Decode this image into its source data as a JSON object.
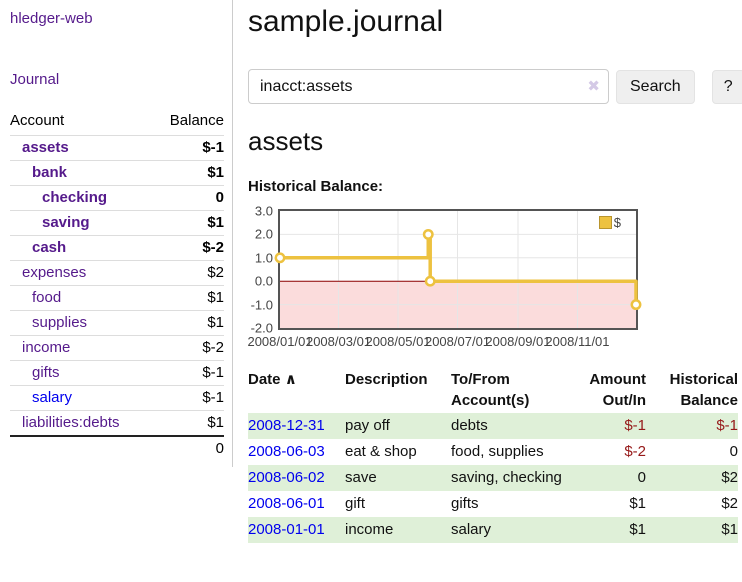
{
  "app": {
    "brand": "hledger-web"
  },
  "colors": {
    "link_purple": "#551a8b",
    "link_blue": "#0000ee",
    "negative_strong": "#961919",
    "negative_muted": "#c46a6a",
    "row_shade_green": "#dff0d8",
    "chart_gold": "#edc240"
  },
  "sidebar": {
    "journal_label": "Journal",
    "accounts_table": {
      "headers": {
        "account": "Account",
        "balance": "Balance"
      },
      "rows": [
        {
          "name": "assets",
          "balance": "$-1",
          "depth": 1,
          "bold": true,
          "balance_style": "neg-strong",
          "link_color": "purple"
        },
        {
          "name": "bank",
          "balance": "$1",
          "depth": 2,
          "bold": true,
          "balance_style": "normal",
          "link_color": "purple"
        },
        {
          "name": "checking",
          "balance": "0",
          "depth": 3,
          "bold": true,
          "balance_style": "normal",
          "link_color": "purple"
        },
        {
          "name": "saving",
          "balance": "$1",
          "depth": 3,
          "bold": true,
          "balance_style": "normal",
          "link_color": "purple"
        },
        {
          "name": "cash",
          "balance": "$-2",
          "depth": 2,
          "bold": true,
          "balance_style": "neg-strong",
          "link_color": "purple"
        },
        {
          "name": "expenses",
          "balance": "$2",
          "depth": 1,
          "bold": false,
          "balance_style": "normal",
          "link_color": "purple"
        },
        {
          "name": "food",
          "balance": "$1",
          "depth": 2,
          "bold": false,
          "balance_style": "normal",
          "link_color": "purple"
        },
        {
          "name": "supplies",
          "balance": "$1",
          "depth": 2,
          "bold": false,
          "balance_style": "normal",
          "link_color": "purple"
        },
        {
          "name": "income",
          "balance": "$-2",
          "depth": 1,
          "bold": false,
          "balance_style": "neg-muted",
          "link_color": "purple"
        },
        {
          "name": "gifts",
          "balance": "$-1",
          "depth": 2,
          "bold": false,
          "balance_style": "neg-muted",
          "link_color": "purple"
        },
        {
          "name": "salary",
          "balance": "$-1",
          "depth": 2,
          "bold": false,
          "balance_style": "neg-muted",
          "link_color": "blue"
        },
        {
          "name": "liabilities:debts",
          "balance": "$1",
          "depth": 1,
          "bold": false,
          "balance_style": "normal",
          "link_color": "purple"
        }
      ],
      "total": "0"
    }
  },
  "main": {
    "title": "sample.journal",
    "search": {
      "value": "inacct:assets",
      "clear_icon": "✖",
      "button_label": "Search",
      "help_label": "?"
    },
    "account_heading": "assets",
    "chart_title": "Historical Balance:"
  },
  "chart_data": {
    "type": "line",
    "step": true,
    "legend": "$",
    "legend_position": "top-right",
    "grid": true,
    "x_range": [
      "2008-01-01",
      "2008-12-31"
    ],
    "ylim": [
      -2,
      3
    ],
    "yticks": [
      "3.0",
      "2.0",
      "1.0",
      "0.0",
      "-1.0",
      "-2.0"
    ],
    "xticks": [
      "2008/01/01",
      "2008/03/01",
      "2008/05/01",
      "2008/07/01",
      "2008/09/01",
      "2008/11/01"
    ],
    "series": [
      {
        "name": "$",
        "color": "#edc240",
        "points": [
          [
            "2008-01-01",
            1
          ],
          [
            "2008-06-01",
            2
          ],
          [
            "2008-06-03",
            0
          ],
          [
            "2008-12-31",
            -1
          ]
        ]
      }
    ],
    "negative_region_color": "#fbdcdc",
    "zero_line_color": "#8b0000",
    "gridline_color": "#e6e6e6",
    "border_color": "#545454"
  },
  "register_table": {
    "headers": {
      "date": "Date",
      "sort_icon": "∧",
      "description": "Description",
      "accounts": "To/From Account(s)",
      "amount": "Amount Out/In",
      "balance": "Historical Balance"
    },
    "rows": [
      {
        "date": "2008-12-31",
        "description": "pay off",
        "accounts": "debts",
        "amount": "$-1",
        "amount_negative": true,
        "balance": "$-1",
        "balance_negative": true,
        "shaded": true
      },
      {
        "date": "2008-06-03",
        "description": "eat & shop",
        "accounts": "food, supplies",
        "amount": "$-2",
        "amount_negative": true,
        "balance": "0",
        "balance_negative": false,
        "shaded": false
      },
      {
        "date": "2008-06-02",
        "description": "save",
        "accounts": "saving, checking",
        "amount": "0",
        "amount_negative": false,
        "balance": "$2",
        "balance_negative": false,
        "shaded": true
      },
      {
        "date": "2008-06-01",
        "description": "gift",
        "accounts": "gifts",
        "amount": "$1",
        "amount_negative": false,
        "balance": "$2",
        "balance_negative": false,
        "shaded": false
      },
      {
        "date": "2008-01-01",
        "description": "income",
        "accounts": "salary",
        "amount": "$1",
        "amount_negative": false,
        "balance": "$1",
        "balance_negative": false,
        "shaded": true
      }
    ]
  }
}
